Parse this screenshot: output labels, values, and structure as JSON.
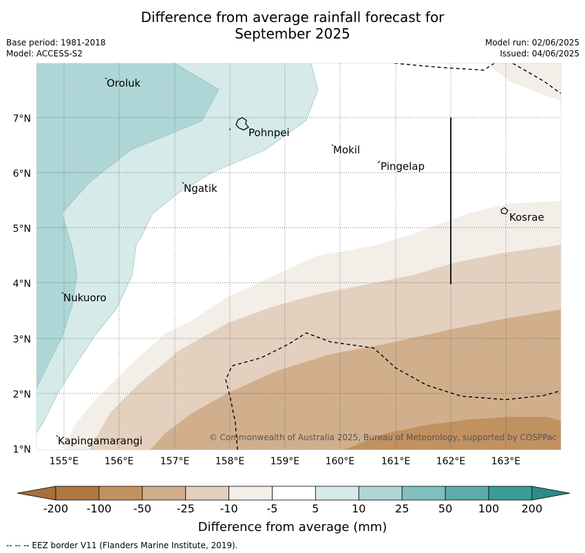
{
  "title_line1": "Difference from average rainfall forecast for",
  "title_line2": "September 2025",
  "meta_left": [
    "Base period: 1981-2018",
    "Model: ACCESS-S2"
  ],
  "meta_right": [
    "Model run: 02/06/2025",
    "Issued: 04/06/2025"
  ],
  "lon_ticks": [
    "155°E",
    "156°E",
    "157°E",
    "158°E",
    "159°E",
    "160°E",
    "161°E",
    "162°E",
    "163°E"
  ],
  "lat_ticks": [
    "7°N",
    "6°N",
    "5°N",
    "4°N",
    "3°N",
    "2°N",
    "1°N"
  ],
  "places": [
    "Oroluk",
    "Pohnpei",
    "Mokil",
    "Pingelap",
    "Ngatik",
    "Kosrae",
    "Nukuoro",
    "Kapingamarangi"
  ],
  "copyright": "© Commonwealth of Australia 2025, Bureau of Meteorology, supported by COSPPac",
  "colorbar": {
    "labels": [
      "-200",
      "-100",
      "-50",
      "-25",
      "-10",
      "-5",
      "5",
      "10",
      "25",
      "50",
      "100",
      "200"
    ],
    "colors": [
      "#a5703a",
      "#b07840",
      "#c1915f",
      "#d1af8d",
      "#e3d0be",
      "#f3eee8",
      "#ffffff",
      "#d5eae9",
      "#aed6d6",
      "#82c0bf",
      "#5eacaa",
      "#3a9b98",
      "#2d8b88"
    ],
    "title": "Difference from average (mm)"
  },
  "footnote": "--  --  -- EEZ border V11 (Flanders Marine Institute, 2019)."
}
